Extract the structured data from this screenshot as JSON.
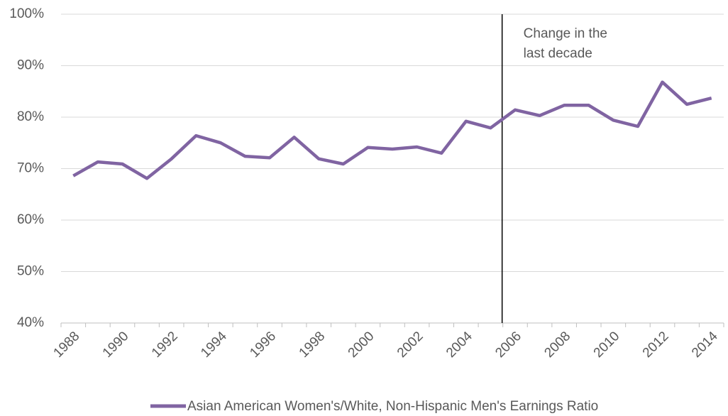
{
  "chart_data": {
    "type": "line",
    "categories": [
      "1988",
      null,
      "1990",
      null,
      "1992",
      null,
      "1994",
      null,
      "1996",
      null,
      "1998",
      null,
      "2000",
      null,
      "2002",
      null,
      "2004",
      null,
      "2006",
      null,
      "2008",
      null,
      "2010",
      null,
      "2012",
      null,
      "2014"
    ],
    "series": [
      {
        "name": "Asian American Women's/White, Non-Hispanic Men's Earnings Ratio",
        "color": "#8064a2",
        "values": [
          68.6,
          71.3,
          70.9,
          68.1,
          71.9,
          76.4,
          75.0,
          72.4,
          72.1,
          76.1,
          71.9,
          70.9,
          74.1,
          73.8,
          74.2,
          73.0,
          79.2,
          77.9,
          81.4,
          80.3,
          82.3,
          82.3,
          79.4,
          78.2,
          86.8,
          82.5,
          83.7
        ]
      }
    ],
    "ylim": [
      40,
      100
    ],
    "yticks": [
      {
        "value": 40,
        "label": "40%"
      },
      {
        "value": 50,
        "label": "50%"
      },
      {
        "value": 60,
        "label": "60%"
      },
      {
        "value": 70,
        "label": "70%"
      },
      {
        "value": 80,
        "label": "80%"
      },
      {
        "value": 90,
        "label": "90%"
      },
      {
        "value": 100,
        "label": "100%"
      }
    ],
    "grid": true,
    "legend": "bottom",
    "annotation": [
      "Change in the",
      "last decade"
    ]
  }
}
